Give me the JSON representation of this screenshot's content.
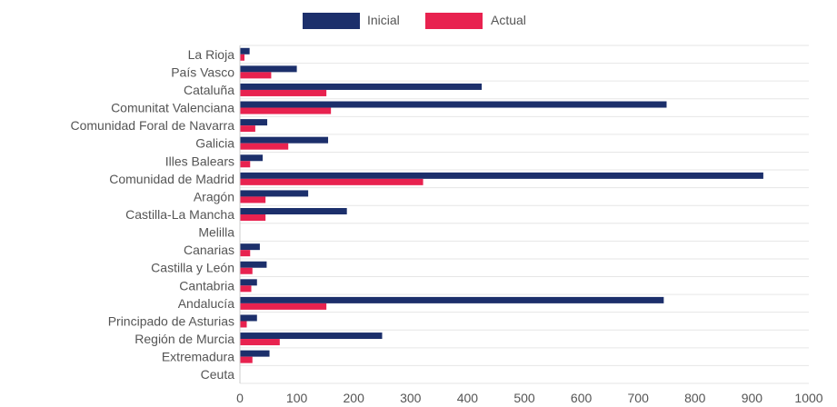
{
  "chart_data": {
    "type": "bar",
    "orientation": "horizontal",
    "categories": [
      "La Rioja",
      "País Vasco",
      "Cataluña",
      "Comunitat Valenciana",
      "Comunidad Foral de Navarra",
      "Galicia",
      "Illes Balears",
      "Comunidad de Madrid",
      "Aragón",
      "Castilla-La Mancha",
      "Melilla",
      "Canarias",
      "Castilla y León",
      "Cantabria",
      "Andalucía",
      "Principado de Asturias",
      "Región de Murcia",
      "Extremadura",
      "Ceuta"
    ],
    "series": [
      {
        "name": "Inicial",
        "color": "#1c2f6b",
        "values": [
          17,
          100,
          425,
          750,
          48,
          155,
          40,
          920,
          120,
          188,
          0,
          35,
          47,
          30,
          745,
          30,
          250,
          52,
          0
        ]
      },
      {
        "name": "Actual",
        "color": "#e8224f",
        "values": [
          8,
          55,
          152,
          160,
          27,
          85,
          18,
          322,
          45,
          45,
          0,
          18,
          22,
          20,
          152,
          12,
          70,
          22,
          0
        ]
      }
    ],
    "xlim": [
      0,
      1000
    ],
    "xticks": [
      "0",
      "100",
      "200",
      "300",
      "400",
      "500",
      "600",
      "700",
      "800",
      "900",
      "1000"
    ],
    "grid": true,
    "legend": "top-center",
    "title": "",
    "xlabel": "",
    "ylabel": ""
  }
}
